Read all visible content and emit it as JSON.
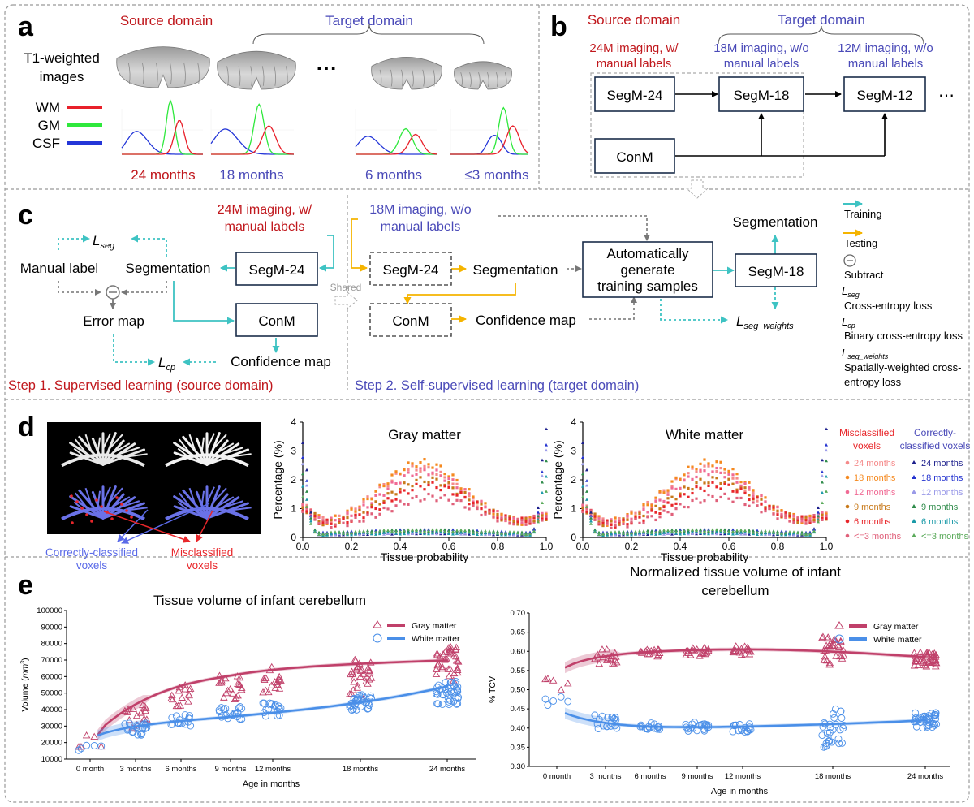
{
  "panel_a": {
    "letter": "a",
    "source_domain": "Source domain",
    "target_domain": "Target domain",
    "t1_label_1": "T1-weighted",
    "t1_label_2": "images",
    "ellipsis": "⋯",
    "legend": [
      {
        "label": "WM",
        "color": "#e8202a"
      },
      {
        "label": "GM",
        "color": "#2ee83c"
      },
      {
        "label": "CSF",
        "color": "#2436d8"
      }
    ],
    "ages": [
      {
        "label": "24 months",
        "color": "#c0171c"
      },
      {
        "label": "18 months",
        "color": "#4a4ab8"
      },
      {
        "label": "6 months",
        "color": "#4a4ab8"
      },
      {
        "label": "≤3 months",
        "color": "#4a4ab8"
      }
    ]
  },
  "panel_b": {
    "letter": "b",
    "source_domain": "Source domain",
    "target_domain": "Target domain",
    "desc_24": [
      "24M imaging, w/",
      "manual labels"
    ],
    "desc_18": [
      "18M imaging, w/o",
      "manual labels"
    ],
    "desc_12": [
      "12M imaging, w/o",
      "manual labels"
    ],
    "boxes": {
      "segm24": "SegM-24",
      "segm18": "SegM-18",
      "segm12": "SegM-12",
      "conm": "ConM"
    },
    "ellipsis": "⋯"
  },
  "panel_c": {
    "letter": "c",
    "imaging_24": [
      "24M imaging, w/",
      "manual labels"
    ],
    "imaging_18": [
      "18M imaging, w/o",
      "manual labels"
    ],
    "l_seg": "L",
    "l_seg_sub": "seg",
    "l_cp": "L",
    "l_cp_sub": "cp",
    "l_segw": "L",
    "l_segw_sub": "seg_weights",
    "manual_label": "Manual label",
    "segmentation": "Segmentation",
    "segm24": "SegM-24",
    "error_map": "Error map",
    "conm": "ConM",
    "confidence_map": "Confidence map",
    "shared": "Shared",
    "auto_gen": [
      "Automatically",
      "generate",
      "training samples"
    ],
    "segm18": "SegM-18",
    "step1": "Step 1. Supervised learning (source domain)",
    "step2": "Step 2. Self-supervised learning (target domain)",
    "legend": {
      "training": "Training",
      "testing": "Testing",
      "subtract": "Subtract",
      "lseg_desc": "Cross-entropy loss",
      "lcp_desc": "Binary cross-entropy loss",
      "lsegw_desc": [
        "Spatially-weighted cross-",
        "entropy loss"
      ]
    }
  },
  "panel_d": {
    "letter": "d",
    "correct_label": [
      "Correctly-classified",
      "voxels"
    ],
    "mis_label": [
      "Misclassified",
      "voxels"
    ],
    "gm_title": "Gray matter",
    "wm_title": "White matter",
    "ylabel": "Percentage (%)",
    "xlabel": "Tissue probability",
    "xticks": [
      "0.0",
      "0.2",
      "0.4",
      "0.6",
      "0.8",
      "1.0"
    ],
    "yticks": [
      "0",
      "1",
      "2",
      "3",
      "4"
    ],
    "legend_mis_title": [
      "Misclassified",
      "voxels"
    ],
    "legend_cor_title": [
      "Correctly-",
      "classified voxels"
    ],
    "legend_mis": [
      {
        "label": "24 months",
        "color": "#f58a8a"
      },
      {
        "label": "18 months",
        "color": "#f5891f"
      },
      {
        "label": "12 months",
        "color": "#f06a94"
      },
      {
        "label": "9 months",
        "color": "#c8791a"
      },
      {
        "label": "6 months",
        "color": "#e8262a"
      },
      {
        "label": "<=3 months",
        "color": "#e0607a"
      }
    ],
    "legend_cor": [
      {
        "label": "24 months",
        "color": "#1c1f8c"
      },
      {
        "label": "18 months",
        "color": "#2433d0"
      },
      {
        "label": "12 months",
        "color": "#9a9ae8"
      },
      {
        "label": "9 months",
        "color": "#2e8b4a"
      },
      {
        "label": "6 months",
        "color": "#1a9aa8"
      },
      {
        "label": "<=3 months",
        "color": "#5aaa5a"
      }
    ]
  },
  "panel_e": {
    "letter": "e",
    "left": {
      "title": "Tissue volume of infant cerebellum",
      "ylabel": "Volume (",
      "ylabel_unit": "mm",
      "ylabel_end": ")",
      "yticks": [
        "10000",
        "20000",
        "30000",
        "40000",
        "50000",
        "60000",
        "70000",
        "80000",
        "90000",
        "100000"
      ],
      "xlabel": "Age in months",
      "xticks": [
        "0 month",
        "3 months",
        "6 months",
        "9 months",
        "12 months",
        "18 months",
        "24 months"
      ],
      "legend": [
        "Gray matter",
        "White matter"
      ]
    },
    "right": {
      "title": [
        "Normalized tissue volume of infant",
        "cerebellum"
      ],
      "ylabel": "% TCV",
      "yticks": [
        "0.30",
        "0.35",
        "0.40",
        "0.45",
        "0.50",
        "0.55",
        "0.60",
        "0.65",
        "0.70"
      ],
      "xlabel": "Age in months",
      "xticks": [
        "0 month",
        "3 months",
        "6 months",
        "9 months",
        "12 months",
        "18 months",
        "24 months"
      ],
      "legend": [
        "Gray matter",
        "White matter"
      ]
    },
    "gm_color": "#c0406a",
    "wm_color": "#4a8fe8"
  }
}
